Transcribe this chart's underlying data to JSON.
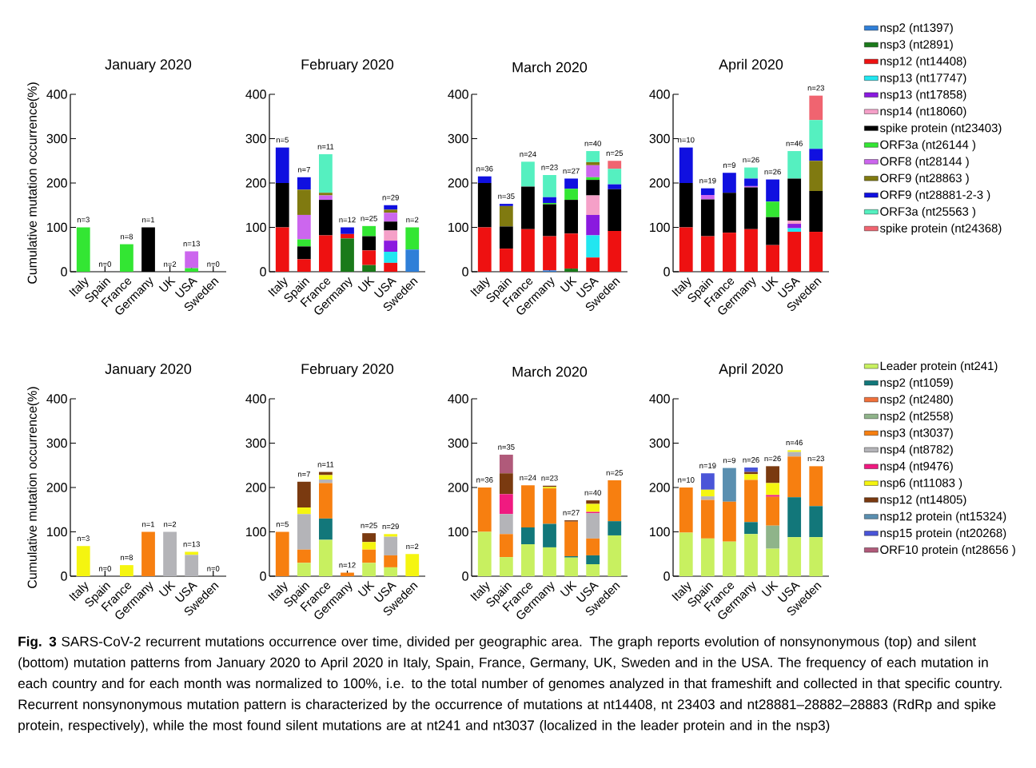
{
  "chart_data": [
    {
      "type": "bar",
      "stacked": true,
      "title": "January 2020",
      "ylabel": "Cumulative mutation occurrence(%)",
      "categories": [
        "Italy",
        "Spain",
        "France",
        "Germany",
        "UK",
        "USA",
        "Sweden"
      ],
      "ylim": [
        0,
        400
      ],
      "yticks": [
        0,
        100,
        200,
        300,
        400
      ],
      "series": [
        {
          "color": "#000000",
          "values": [
            0,
            0,
            0,
            100,
            0,
            0,
            0
          ]
        },
        {
          "color": "#33e633",
          "values": [
            100,
            0,
            62,
            0,
            0,
            8,
            0
          ]
        },
        {
          "color": "#cc66ee",
          "values": [
            0,
            0,
            0,
            0,
            0,
            38,
            0
          ]
        }
      ],
      "annotations": [
        {
          "text": "n=3",
          "x": "Italy",
          "y": 100
        },
        {
          "text": "n=0",
          "x": "Spain",
          "y": 0
        },
        {
          "text": "n=8",
          "x": "France",
          "y": 62
        },
        {
          "text": "n=1",
          "x": "Germany",
          "y": 100
        },
        {
          "text": "n=2",
          "x": "UK",
          "y": 0
        },
        {
          "text": "n=13",
          "x": "USA",
          "y": 46
        },
        {
          "text": "n=0",
          "x": "Sweden",
          "y": 0
        }
      ]
    },
    {
      "type": "bar",
      "stacked": true,
      "title": "February 2020",
      "categories": [
        "Italy",
        "Spain",
        "France",
        "Germany",
        "UK",
        "USA",
        "Sweden"
      ],
      "ylim": [
        0,
        400
      ],
      "yticks": [
        0,
        100,
        200,
        300,
        400
      ],
      "series": [
        {
          "color": "#2f7fd8",
          "values": [
            0,
            0,
            0,
            0,
            0,
            0,
            50
          ]
        },
        {
          "color": "#1a7a1a",
          "values": [
            0,
            0,
            0,
            75,
            15,
            0,
            0
          ]
        },
        {
          "color": "#ee1111",
          "values": [
            100,
            28,
            82,
            10,
            33,
            20,
            0
          ]
        },
        {
          "color": "#22e6f0",
          "values": [
            0,
            0,
            0,
            0,
            0,
            25,
            0
          ]
        },
        {
          "color": "#8a1adf",
          "values": [
            0,
            0,
            0,
            0,
            0,
            25,
            0
          ]
        },
        {
          "color": "#f5a0c8",
          "values": [
            0,
            0,
            0,
            0,
            0,
            23,
            0
          ]
        },
        {
          "color": "#000000",
          "values": [
            100,
            29,
            80,
            0,
            32,
            20,
            0
          ]
        },
        {
          "color": "#33e633",
          "values": [
            0,
            16,
            0,
            0,
            23,
            0,
            50
          ]
        },
        {
          "color": "#cc66ee",
          "values": [
            0,
            55,
            10,
            0,
            0,
            20,
            0
          ]
        },
        {
          "color": "#807a10",
          "values": [
            0,
            57,
            6,
            0,
            0,
            7,
            0
          ]
        },
        {
          "color": "#1010e0",
          "values": [
            80,
            28,
            0,
            15,
            0,
            10,
            0
          ]
        },
        {
          "color": "#55f0c0",
          "values": [
            0,
            0,
            87,
            0,
            0,
            0,
            0
          ]
        }
      ],
      "annotations": [
        {
          "text": "n=5",
          "x": "Italy",
          "y": 280
        },
        {
          "text": "n=7",
          "x": "Spain",
          "y": 213
        },
        {
          "text": "n=11",
          "x": "France",
          "y": 265
        },
        {
          "text": "n=12",
          "x": "Germany",
          "y": 100
        },
        {
          "text": "n=25",
          "x": "UK",
          "y": 103
        },
        {
          "text": "n=29",
          "x": "USA",
          "y": 150
        },
        {
          "text": "n=2",
          "x": "Sweden",
          "y": 100
        }
      ]
    },
    {
      "type": "bar",
      "stacked": true,
      "title": "March 2020",
      "categories": [
        "Italy",
        "Spain",
        "France",
        "Germany",
        "UK",
        "USA",
        "Sweden"
      ],
      "ylim": [
        0,
        400
      ],
      "yticks": [
        0,
        100,
        200,
        300,
        400
      ],
      "series": [
        {
          "color": "#2f7fd8",
          "values": [
            0,
            0,
            0,
            3,
            0,
            0,
            0
          ]
        },
        {
          "color": "#1a7a1a",
          "values": [
            0,
            0,
            0,
            0,
            7,
            0,
            0
          ]
        },
        {
          "color": "#ee1111",
          "values": [
            100,
            52,
            96,
            77,
            79,
            32,
            92
          ]
        },
        {
          "color": "#22e6f0",
          "values": [
            0,
            0,
            0,
            0,
            0,
            50,
            0
          ]
        },
        {
          "color": "#8a1adf",
          "values": [
            0,
            0,
            0,
            0,
            0,
            46,
            0
          ]
        },
        {
          "color": "#f5a0c8",
          "values": [
            0,
            0,
            0,
            0,
            0,
            44,
            0
          ]
        },
        {
          "color": "#000000",
          "values": [
            100,
            50,
            96,
            72,
            76,
            35,
            94
          ]
        },
        {
          "color": "#33e633",
          "values": [
            0,
            0,
            0,
            3,
            25,
            6,
            0
          ]
        },
        {
          "color": "#cc66ee",
          "values": [
            0,
            0,
            0,
            0,
            0,
            27,
            0
          ]
        },
        {
          "color": "#807a10",
          "values": [
            0,
            46,
            0,
            0,
            0,
            7,
            0
          ]
        },
        {
          "color": "#1010e0",
          "values": [
            15,
            5,
            0,
            13,
            23,
            0,
            11
          ]
        },
        {
          "color": "#55f0c0",
          "values": [
            0,
            0,
            56,
            50,
            0,
            25,
            35
          ]
        },
        {
          "color": "#f06470",
          "values": [
            0,
            0,
            0,
            0,
            0,
            0,
            18
          ]
        }
      ],
      "annotations": [
        {
          "text": "n=36",
          "x": "Italy",
          "y": 215
        },
        {
          "text": "n=35",
          "x": "Spain",
          "y": 153
        },
        {
          "text": "n=24",
          "x": "France",
          "y": 248
        },
        {
          "text": "n=23",
          "x": "Germany",
          "y": 218
        },
        {
          "text": "n=27",
          "x": "UK",
          "y": 210
        },
        {
          "text": "n=40",
          "x": "USA",
          "y": 272
        },
        {
          "text": "n=25",
          "x": "Sweden",
          "y": 250
        }
      ]
    },
    {
      "type": "bar",
      "stacked": true,
      "title": "April 2020",
      "legend": "right",
      "categories": [
        "Italy",
        "Spain",
        "France",
        "Germany",
        "UK",
        "USA",
        "Sweden"
      ],
      "ylim": [
        0,
        400
      ],
      "yticks": [
        0,
        100,
        200,
        300,
        400
      ],
      "series": [
        {
          "name": "nsp2 (nt1397)",
          "color": "#2f7fd8",
          "values": [
            0,
            0,
            0,
            0,
            0,
            0,
            0
          ]
        },
        {
          "name": "nsp3 (nt2891)",
          "color": "#1a7a1a",
          "values": [
            0,
            0,
            0,
            0,
            0,
            0,
            0
          ]
        },
        {
          "name": "nsp12 (nt14408)",
          "color": "#ee1111",
          "values": [
            100,
            80,
            88,
            96,
            60,
            90,
            90
          ]
        },
        {
          "name": "nsp13 (nt17747)",
          "color": "#22e6f0",
          "values": [
            0,
            0,
            0,
            0,
            0,
            8,
            0
          ]
        },
        {
          "name": "nsp13 (nt17858)",
          "color": "#8a1adf",
          "values": [
            0,
            0,
            0,
            0,
            0,
            10,
            0
          ]
        },
        {
          "name": "nsp14 (nt18060)",
          "color": "#f5a0c8",
          "values": [
            0,
            0,
            0,
            0,
            0,
            7,
            0
          ]
        },
        {
          "name": "spike protein (nt23403)",
          "color": "#000000",
          "values": [
            100,
            83,
            90,
            94,
            63,
            95,
            92
          ]
        },
        {
          "name": "ORF3a (nt26144 )",
          "color": "#33e633",
          "values": [
            0,
            0,
            0,
            0,
            35,
            0,
            0
          ]
        },
        {
          "name": "ORF8 (nt28144 )",
          "color": "#cc66ee",
          "values": [
            0,
            10,
            0,
            3,
            0,
            0,
            0
          ]
        },
        {
          "name": "ORF9 (nt28863 )",
          "color": "#807a10",
          "values": [
            0,
            0,
            0,
            0,
            0,
            0,
            68
          ]
        },
        {
          "name": "ORF9 (nt28881-2-3 )",
          "color": "#1010e0",
          "values": [
            80,
            15,
            45,
            17,
            50,
            0,
            27
          ]
        },
        {
          "name": "ORF3a (nt25563 )",
          "color": "#55f0c0",
          "values": [
            0,
            0,
            0,
            25,
            0,
            62,
            65
          ]
        },
        {
          "name": "spike protein (nt24368)",
          "color": "#f06470",
          "values": [
            0,
            0,
            0,
            0,
            0,
            0,
            55
          ]
        }
      ],
      "annotations": [
        {
          "text": "n=10",
          "x": "Italy",
          "y": 280
        },
        {
          "text": "n=19",
          "x": "Spain",
          "y": 188
        },
        {
          "text": "n=9",
          "x": "France",
          "y": 223
        },
        {
          "text": "n=26",
          "x": "Germany",
          "y": 235
        },
        {
          "text": "n=26",
          "x": "UK",
          "y": 208
        },
        {
          "text": "n=46",
          "x": "USA",
          "y": 272
        },
        {
          "text": "n=23",
          "x": "Sweden",
          "y": 397
        }
      ]
    },
    {
      "type": "bar",
      "stacked": true,
      "title": "January 2020",
      "ylabel": "Cumulative mutation occurrence(%)",
      "categories": [
        "Italy",
        "Spain",
        "France",
        "Germany",
        "UK",
        "USA",
        "Sweden"
      ],
      "ylim": [
        0,
        400
      ],
      "yticks": [
        0,
        100,
        200,
        300,
        400
      ],
      "series": [
        {
          "color": "#f77f10",
          "values": [
            0,
            0,
            0,
            100,
            0,
            0,
            0
          ]
        },
        {
          "color": "#b4b4b8",
          "values": [
            0,
            0,
            0,
            0,
            100,
            48,
            0
          ]
        },
        {
          "color": "#f5f510",
          "values": [
            68,
            0,
            25,
            0,
            0,
            7,
            0
          ]
        }
      ],
      "annotations": [
        {
          "text": "n=3",
          "x": "Italy",
          "y": 68
        },
        {
          "text": "n=0",
          "x": "Spain",
          "y": 0
        },
        {
          "text": "n=8",
          "x": "France",
          "y": 25
        },
        {
          "text": "n=1",
          "x": "Germany",
          "y": 100
        },
        {
          "text": "n=2",
          "x": "UK",
          "y": 100
        },
        {
          "text": "n=13",
          "x": "USA",
          "y": 55
        },
        {
          "text": "n=0",
          "x": "Sweden",
          "y": 0
        }
      ]
    },
    {
      "type": "bar",
      "stacked": true,
      "title": "February 2020",
      "categories": [
        "Italy",
        "Spain",
        "France",
        "Germany",
        "UK",
        "USA",
        "Sweden"
      ],
      "ylim": [
        0,
        400
      ],
      "yticks": [
        0,
        100,
        200,
        300,
        400
      ],
      "series": [
        {
          "color": "#c8f060",
          "values": [
            0,
            30,
            82,
            0,
            30,
            20,
            0
          ]
        },
        {
          "color": "#12777a",
          "values": [
            0,
            0,
            48,
            0,
            0,
            0,
            0
          ]
        },
        {
          "color": "#f77f10",
          "values": [
            100,
            30,
            80,
            8,
            30,
            27,
            0
          ]
        },
        {
          "color": "#b4b4b8",
          "values": [
            0,
            80,
            8,
            0,
            0,
            42,
            0
          ]
        },
        {
          "color": "#f5f510",
          "values": [
            0,
            15,
            10,
            0,
            17,
            6,
            50
          ]
        },
        {
          "color": "#7a3a10",
          "values": [
            0,
            58,
            7,
            0,
            20,
            0,
            0
          ]
        }
      ],
      "annotations": [
        {
          "text": "n=5",
          "x": "Italy",
          "y": 100
        },
        {
          "text": "n=7",
          "x": "Spain",
          "y": 213
        },
        {
          "text": "n=11",
          "x": "France",
          "y": 235
        },
        {
          "text": "n=12",
          "x": "Germany",
          "y": 8
        },
        {
          "text": "n=25",
          "x": "UK",
          "y": 97
        },
        {
          "text": "n=29",
          "x": "USA",
          "y": 95
        },
        {
          "text": "n=2",
          "x": "Sweden",
          "y": 50
        }
      ]
    },
    {
      "type": "bar",
      "stacked": true,
      "title": "March 2020",
      "categories": [
        "Italy",
        "Spain",
        "France",
        "Germany",
        "UK",
        "USA",
        "Sweden"
      ],
      "ylim": [
        0,
        400
      ],
      "yticks": [
        0,
        100,
        200,
        300,
        400
      ],
      "series": [
        {
          "color": "#c8f060",
          "values": [
            100,
            43,
            72,
            65,
            42,
            27,
            92
          ]
        },
        {
          "color": "#12777a",
          "values": [
            0,
            0,
            38,
            53,
            3,
            20,
            32
          ]
        },
        {
          "color": "#f77f10",
          "values": [
            100,
            52,
            95,
            80,
            78,
            38,
            92
          ]
        },
        {
          "color": "#b4b4b8",
          "values": [
            0,
            45,
            0,
            0,
            0,
            57,
            0
          ]
        },
        {
          "color": "#f01a80",
          "values": [
            0,
            45,
            0,
            0,
            0,
            3,
            0
          ]
        },
        {
          "color": "#f5f510",
          "values": [
            0,
            0,
            0,
            3,
            0,
            18,
            0
          ]
        },
        {
          "color": "#7a3a10",
          "values": [
            0,
            47,
            0,
            3,
            3,
            8,
            0
          ]
        },
        {
          "color": "#b05a7a",
          "values": [
            0,
            42,
            0,
            0,
            0,
            0,
            0
          ]
        }
      ],
      "annotations": [
        {
          "text": "n=36",
          "x": "Italy",
          "y": 200
        },
        {
          "text": "n=35",
          "x": "Spain",
          "y": 274
        },
        {
          "text": "n=24",
          "x": "France",
          "y": 205
        },
        {
          "text": "n=23",
          "x": "Germany",
          "y": 204
        },
        {
          "text": "n=27",
          "x": "UK",
          "y": 126
        },
        {
          "text": "n=40",
          "x": "USA",
          "y": 171
        },
        {
          "text": "n=25",
          "x": "Sweden",
          "y": 216
        }
      ]
    },
    {
      "type": "bar",
      "stacked": true,
      "title": "April 2020",
      "legend": "right",
      "categories": [
        "Italy",
        "Spain",
        "France",
        "Germany",
        "UK",
        "USA",
        "Sweden"
      ],
      "ylim": [
        0,
        400
      ],
      "yticks": [
        0,
        100,
        200,
        300,
        400
      ],
      "series": [
        {
          "name": "Leader protein (nt241)",
          "color": "#c8f060",
          "values": [
            98,
            85,
            78,
            95,
            62,
            88,
            88
          ]
        },
        {
          "name": "nsp2 (nt1059)",
          "color": "#12777a",
          "values": [
            0,
            0,
            0,
            27,
            0,
            90,
            70
          ]
        },
        {
          "name": "nsp2 (nt2480)",
          "color": "#f0703a",
          "values": [
            0,
            0,
            0,
            0,
            0,
            0,
            0
          ]
        },
        {
          "name": "nsp2 (nt2558)",
          "color": "#8fb48a",
          "values": [
            0,
            0,
            0,
            0,
            52,
            0,
            0
          ]
        },
        {
          "name": "nsp3 (nt3037)",
          "color": "#f77f10",
          "values": [
            102,
            87,
            90,
            95,
            65,
            92,
            90
          ]
        },
        {
          "name": "nsp4 (nt8782)",
          "color": "#b4b4b8",
          "values": [
            0,
            8,
            0,
            0,
            0,
            10,
            0
          ]
        },
        {
          "name": "nsp4 (nt9476)",
          "color": "#f01a80",
          "values": [
            0,
            0,
            0,
            0,
            4,
            0,
            0
          ]
        },
        {
          "name": "nsp6 (nt11083 )",
          "color": "#f5f510",
          "values": [
            0,
            15,
            0,
            13,
            27,
            4,
            0
          ]
        },
        {
          "name": "nsp12 (nt14805)",
          "color": "#7a3a10",
          "values": [
            0,
            0,
            0,
            5,
            38,
            0,
            0
          ]
        },
        {
          "name": "nsp12 protein (nt15324)",
          "color": "#5a8fb0",
          "values": [
            0,
            0,
            76,
            0,
            0,
            0,
            0
          ]
        },
        {
          "name": "nsp15 protein (nt20268)",
          "color": "#4a55d8",
          "values": [
            0,
            37,
            0,
            10,
            0,
            0,
            0
          ]
        },
        {
          "name": "ORF10 protein (nt28656 )",
          "color": "#b05a7a",
          "values": [
            0,
            0,
            0,
            0,
            0,
            0,
            0
          ]
        }
      ],
      "annotations": [
        {
          "text": "n=10",
          "x": "Italy",
          "y": 200
        },
        {
          "text": "n=19",
          "x": "Spain",
          "y": 232
        },
        {
          "text": "n=9",
          "x": "France",
          "y": 244
        },
        {
          "text": "n=26",
          "x": "Germany",
          "y": 245
        },
        {
          "text": "n=26",
          "x": "UK",
          "y": 248
        },
        {
          "text": "n=46",
          "x": "USA",
          "y": 284
        },
        {
          "text": "n=23",
          "x": "Sweden",
          "y": 248
        },
        "**Fig. 3** SARS-CoV-2 recurrent mutations occurrence over time, divided per geographic area. The graph reports evolution of nonsynonymous (top) and silent (bottom) mutation patterns from January 2020 to April 2020 in Italy, Spain, France, Germany, UK, Sweden and in the USA. The frequency of each mutation in each country and for each month was normalized to 100%, i.e. to the total number of genomes analyzed in that frameshift and collected in that specific country. Recurrent nonsynonymous mutation pattern is characterized by the occurrence of mutations at nt14408, nt 23403 and nt28881–28882–28883 (RdRp and spike protein, respectively), while the most found silent mutations are at nt241 and nt3037 (localized in the leader protein and in the nsp3)"
      ]
    }
  ]
}
